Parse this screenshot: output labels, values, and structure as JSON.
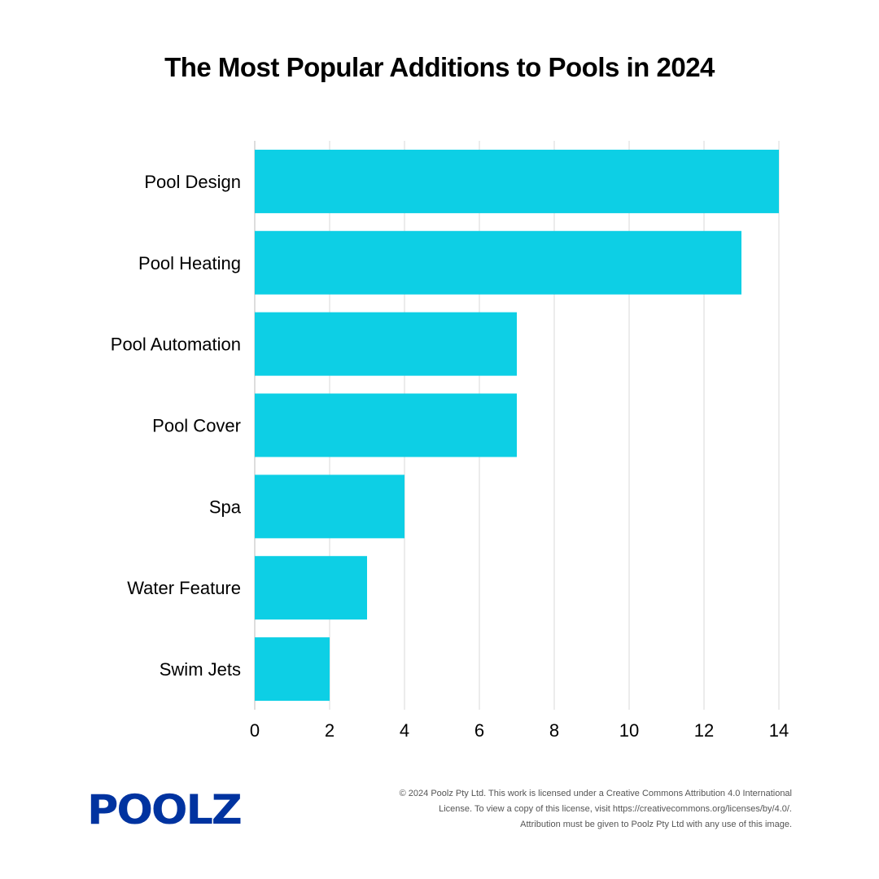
{
  "chart_data": {
    "type": "bar",
    "orientation": "horizontal",
    "title": "The Most Popular Additions to Pools in 2024",
    "categories": [
      "Pool Design",
      "Pool Heating",
      "Pool Automation",
      "Pool Cover",
      "Spa",
      "Water Feature",
      "Swim Jets"
    ],
    "values": [
      14,
      13,
      7,
      7,
      4,
      3,
      2
    ],
    "xlabel": "",
    "ylabel": "",
    "xlim": [
      0,
      14
    ],
    "xticks": [
      "0",
      "2",
      "4",
      "6",
      "8",
      "10",
      "12",
      "14"
    ],
    "grid": "vertical",
    "bar_color": "#0dcfe5"
  },
  "branding": {
    "logo_text": "POOLZ",
    "logo_color": "#0033a0"
  },
  "footer": {
    "lines": [
      "© 2024 Poolz Pty Ltd. This work is licensed under a Creative Commons Attribution 4.0 International",
      "License. To view a copy of this license, visit https://creativecommons.org/licenses/by/4.0/.",
      "Attribution must be given to Poolz Pty Ltd with any use of this image."
    ]
  }
}
